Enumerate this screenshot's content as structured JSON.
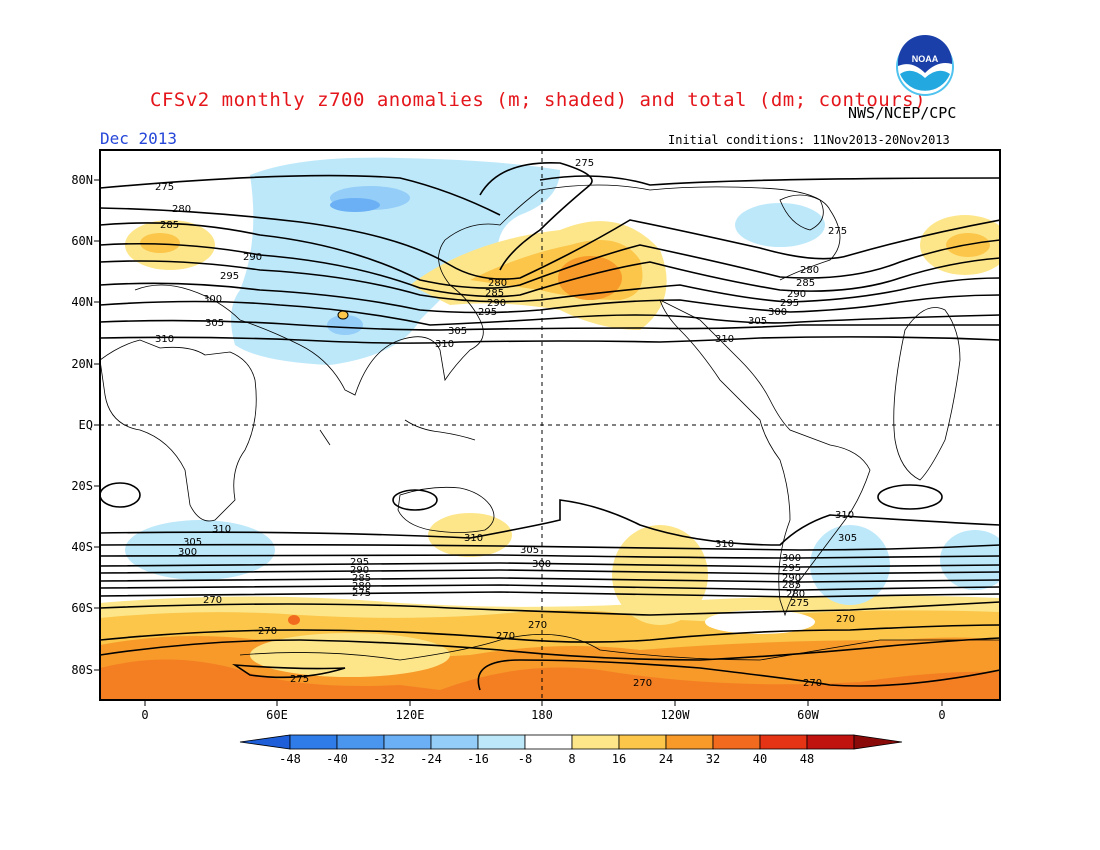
{
  "header": {
    "title": "CFSv2 monthly z700 anomalies (m; shaded) and total (dm; contours)",
    "agency": "NWS/NCEP/CPC",
    "month": "Dec 2013",
    "initial_conditions": "Initial conditions: 11Nov2013-20Nov2013",
    "logo_text": "NOAA"
  },
  "map": {
    "lat_labels": [
      "80N",
      "60N",
      "40N",
      "20N",
      "EQ",
      "20S",
      "40S",
      "60S",
      "80S"
    ],
    "lon_labels": [
      "0",
      "60E",
      "120E",
      "180",
      "120W",
      "60W",
      "0"
    ],
    "contour_labels": [
      "275",
      "280",
      "285",
      "290",
      "295",
      "300",
      "305",
      "310",
      "270"
    ]
  },
  "colorbar": {
    "ticks": [
      "-48",
      "-40",
      "-32",
      "-24",
      "-16",
      "-8",
      "8",
      "16",
      "24",
      "32",
      "40",
      "48"
    ],
    "colors": [
      "#1e5fd9",
      "#2f7ce8",
      "#4a96ef",
      "#6bb0f5",
      "#93cdf8",
      "#bde8fa",
      "#ffffff",
      "#fde68a",
      "#fbc64a",
      "#f79a2a",
      "#f26a1e",
      "#e53316",
      "#c0120f",
      "#8a0a0a"
    ]
  }
}
